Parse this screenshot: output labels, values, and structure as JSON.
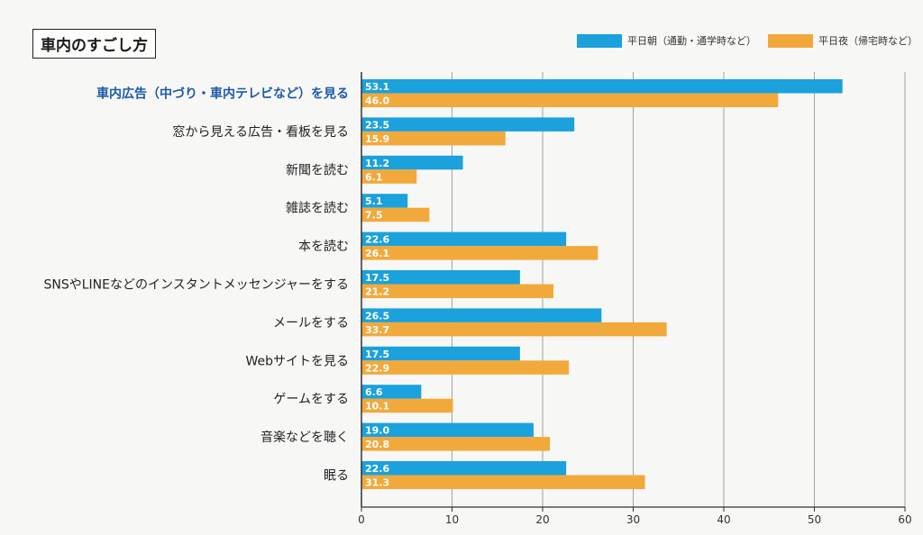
{
  "chart_data": {
    "type": "bar",
    "orientation": "horizontal",
    "title": "車内のすごし方",
    "categories": [
      "車内広告（中づり・車内テレビなど）を見る",
      "窓から見える広告・看板を見る",
      "新聞を読む",
      "雑誌を読む",
      "本を読む",
      "SNSやLINEなどのインスタントメッセンジャーをする",
      "メールをする",
      "Webサイトを見る",
      "ゲームをする",
      "音楽などを聴く",
      "眠る"
    ],
    "highlight_index": 0,
    "series": [
      {
        "name": "平日朝（通勤・通学時など）",
        "color": "#1ba1dc",
        "values": [
          53.1,
          23.5,
          11.2,
          5.1,
          22.6,
          17.5,
          26.5,
          17.5,
          6.6,
          19.0,
          22.6
        ]
      },
      {
        "name": "平日夜（帰宅時など）",
        "color": "#f2a93b",
        "values": [
          46.0,
          15.9,
          6.1,
          7.5,
          26.1,
          21.2,
          33.7,
          22.9,
          10.1,
          20.8,
          31.3
        ]
      }
    ],
    "xlim": [
      0,
      60
    ],
    "xticks": [
      0,
      10,
      20,
      30,
      40,
      50,
      60
    ],
    "grid": true,
    "legend_position": "top-right"
  }
}
